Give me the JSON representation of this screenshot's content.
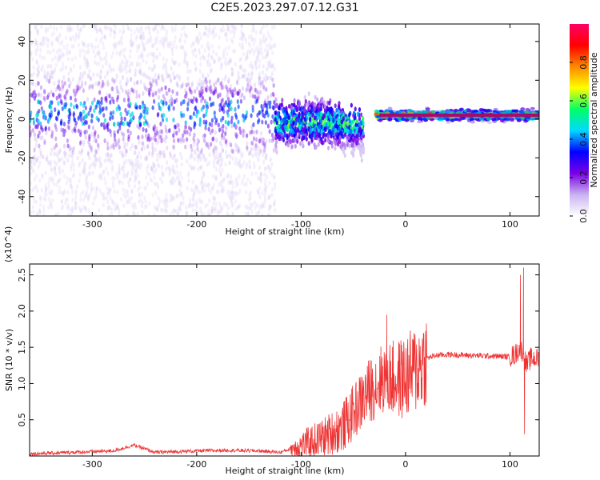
{
  "title": "C2E5.2023.297.07.12.G31",
  "spectrogram": {
    "type": "heatmap",
    "xlabel": "Height of straight line (km)",
    "ylabel": "Frequency (Hz)",
    "xlim": [
      -360,
      128
    ],
    "ylim": [
      -50,
      49
    ],
    "xticks": [
      -300,
      -200,
      -100,
      0,
      100
    ],
    "yticks": [
      -40,
      -20,
      0,
      20,
      40
    ],
    "colorbar": {
      "label": "Normalized spectral amplitude",
      "range": [
        0.0,
        1.0
      ],
      "ticks": [
        0.0,
        0.2,
        0.4,
        0.6,
        0.8
      ],
      "colormap": [
        "#ffffff",
        "#c9b3f0",
        "#7a00e6",
        "#0000ff",
        "#00d8ff",
        "#00ff66",
        "#ffff00",
        "#ff8800",
        "#ff0000",
        "#ff0066"
      ]
    },
    "bands": [
      {
        "x": [
          -360,
          -125
        ],
        "center_hz": 2,
        "spread_hz": 48,
        "peak_amp": 0.35
      },
      {
        "x": [
          -125,
          -40
        ],
        "center_hz": -2,
        "spread_hz": 8,
        "peak_amp": 0.6
      },
      {
        "x": [
          -30,
          128
        ],
        "center_hz": 2,
        "spread_hz": 2,
        "peak_amp": 0.95
      }
    ]
  },
  "chart_data": {
    "type": "line",
    "xlabel": "Height of straight line (km)",
    "ylabel": "SNR (10 * v/v)",
    "y_multiplier": "(x10^4)",
    "xlim": [
      -360,
      128
    ],
    "ylim": [
      0,
      26500
    ],
    "xticks": [
      -300,
      -200,
      -100,
      0,
      100
    ],
    "yticks": [
      5000,
      10000,
      15000,
      20000,
      25000
    ],
    "ytick_labels": [
      "0.5",
      "1.0",
      "1.5",
      "2.0",
      "2.5"
    ],
    "color": "#ee3333",
    "x": [
      -360,
      -320,
      -280,
      -260,
      -240,
      -200,
      -170,
      -140,
      -120,
      -100,
      -80,
      -60,
      -45,
      -35,
      -20,
      -10,
      0,
      10,
      20,
      30,
      40,
      60,
      80,
      100,
      105,
      110,
      113,
      116,
      120,
      128
    ],
    "values": [
      300,
      500,
      700,
      1500,
      500,
      700,
      800,
      700,
      500,
      1500,
      2500,
      4000,
      7000,
      9000,
      11000,
      10500,
      10800,
      12000,
      13500,
      13900,
      14000,
      13900,
      13800,
      13700,
      14000,
      15000,
      14000,
      12500,
      13500,
      13400
    ],
    "spikes": [
      {
        "x": -18,
        "y": 19500
      },
      {
        "x": 110,
        "y": 25000
      },
      {
        "x": 113,
        "y": 26000
      },
      {
        "x": 114,
        "y": 3000
      }
    ]
  }
}
